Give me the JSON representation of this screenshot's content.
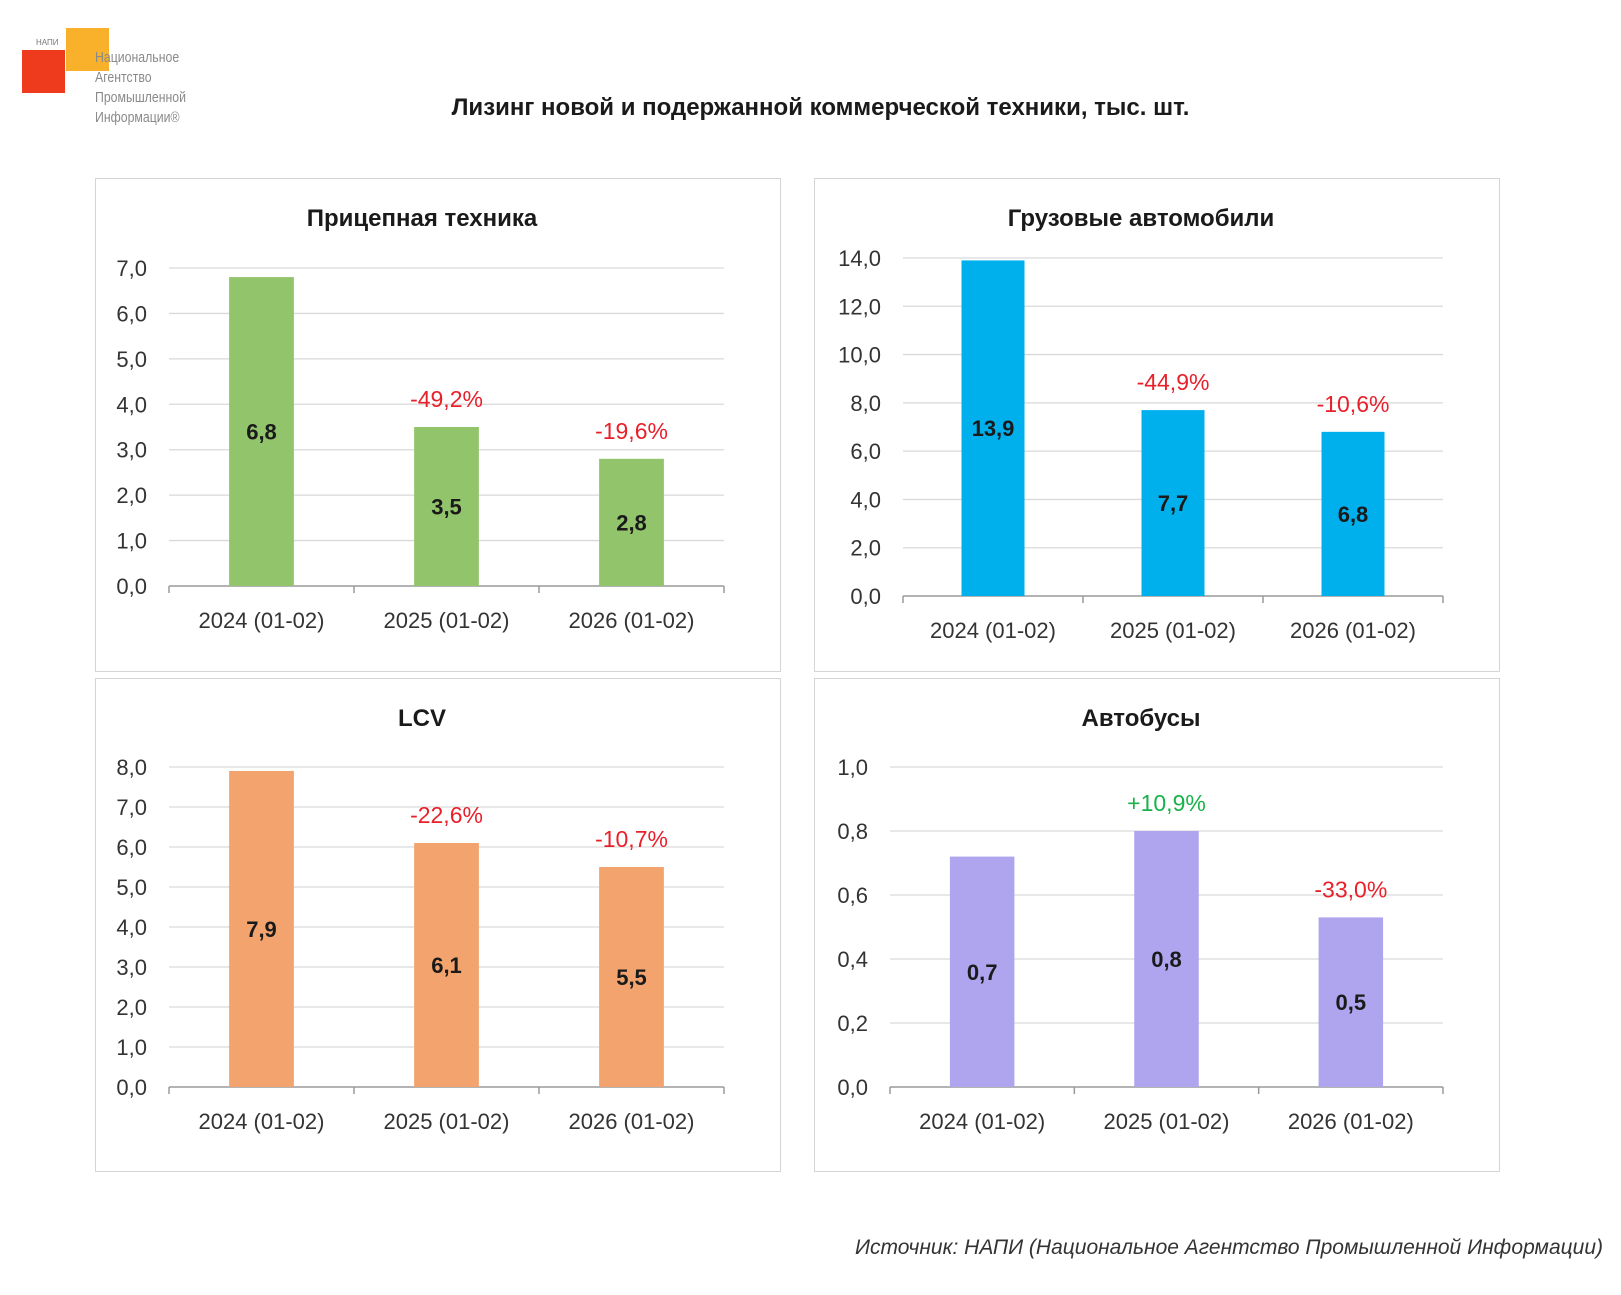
{
  "logo": {
    "small": "НАПИ",
    "lines": [
      "Национальное",
      "Агентство",
      "Промышленной",
      "Информации®"
    ]
  },
  "title": "Лизинг новой и подержанной коммерческой техники, тыс. шт.",
  "source": "Источник: НАПИ (Национальное Агентство Промышленной Информации)",
  "colors": {
    "negative": "#e8202a",
    "positive": "#19b24a"
  },
  "chart_data": [
    {
      "type": "bar",
      "title": "Прицепная техника",
      "categories": [
        "2024 (01-02)",
        "2025 (01-02)",
        "2026 (01-02)"
      ],
      "values": [
        6.8,
        3.5,
        2.8
      ],
      "value_labels": [
        "6,8",
        "3,5",
        "2,8"
      ],
      "changes": [
        "",
        "-49,2%",
        "-19,6%"
      ],
      "ylim": [
        0,
        7
      ],
      "yticks": [
        "0,0",
        "1,0",
        "2,0",
        "3,0",
        "4,0",
        "5,0",
        "6,0",
        "7,0"
      ],
      "color": "#92c46b",
      "grid": true
    },
    {
      "type": "bar",
      "title": "Грузовые автомобили",
      "categories": [
        "2024 (01-02)",
        "2025 (01-02)",
        "2026 (01-02)"
      ],
      "values": [
        13.9,
        7.7,
        6.8
      ],
      "value_labels": [
        "13,9",
        "7,7",
        "6,8"
      ],
      "changes": [
        "",
        "-44,9%",
        "-10,6%"
      ],
      "ylim": [
        0,
        14
      ],
      "yticks": [
        "0,0",
        "2,0",
        "4,0",
        "6,0",
        "8,0",
        "10,0",
        "12,0",
        "14,0"
      ],
      "color": "#00b0ec",
      "grid": true
    },
    {
      "type": "bar",
      "title": "LCV",
      "categories": [
        "2024 (01-02)",
        "2025 (01-02)",
        "2026 (01-02)"
      ],
      "values": [
        7.9,
        6.1,
        5.5
      ],
      "value_labels": [
        "7,9",
        "6,1",
        "5,5"
      ],
      "changes": [
        "",
        "-22,6%",
        "-10,7%"
      ],
      "ylim": [
        0,
        8
      ],
      "yticks": [
        "0,0",
        "1,0",
        "2,0",
        "3,0",
        "4,0",
        "5,0",
        "6,0",
        "7,0",
        "8,0"
      ],
      "color": "#f3a46e",
      "grid": true
    },
    {
      "type": "bar",
      "title": "Автобусы",
      "categories": [
        "2024 (01-02)",
        "2025 (01-02)",
        "2026 (01-02)"
      ],
      "values": [
        0.72,
        0.8,
        0.53
      ],
      "value_labels": [
        "0,7",
        "0,8",
        "0,5"
      ],
      "changes": [
        "",
        "+10,9%",
        "-33,0%"
      ],
      "ylim": [
        0,
        1
      ],
      "yticks": [
        "0,0",
        "0,2",
        "0,4",
        "0,6",
        "0,8",
        "1,0"
      ],
      "color": "#aea5ee",
      "grid": true
    }
  ]
}
